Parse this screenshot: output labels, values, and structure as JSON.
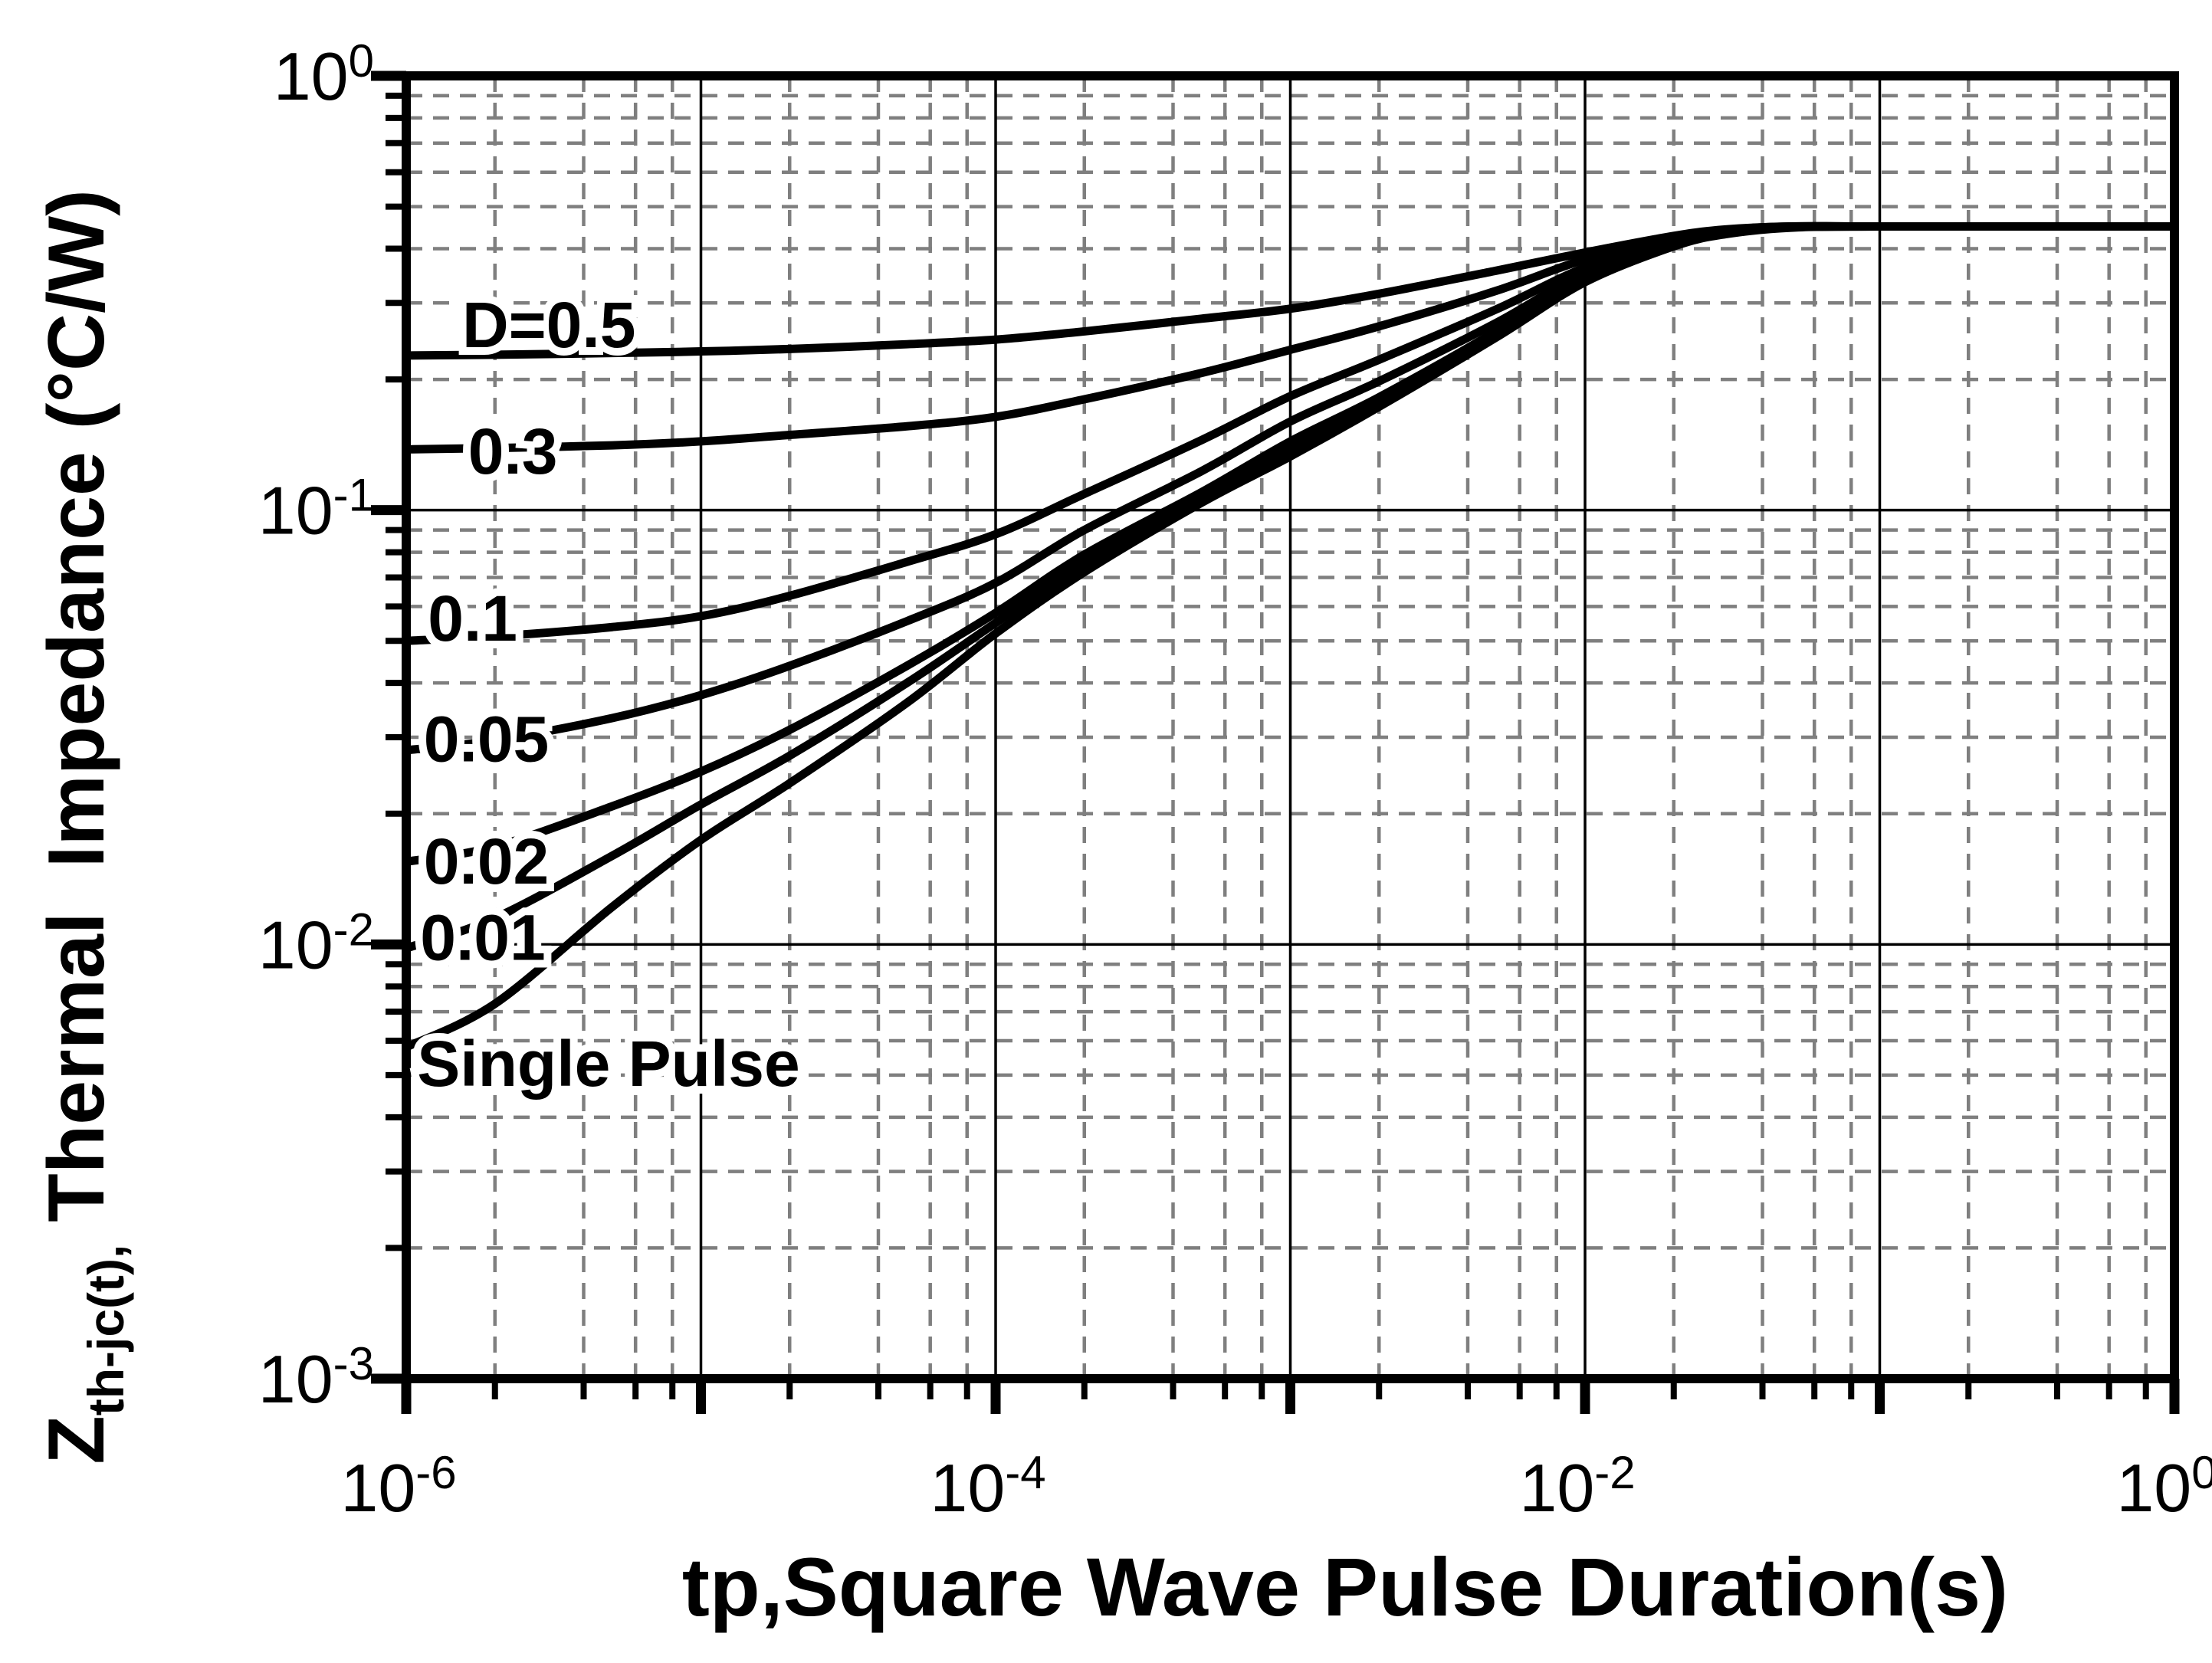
{
  "chart_data": {
    "type": "line",
    "title": "",
    "x_axis": {
      "label": "tp,Square Wave Pulse Duration(s)",
      "scale": "log",
      "range": [
        1e-06,
        1
      ],
      "labeled_exponents": [
        -6,
        -4,
        -2,
        0
      ],
      "major_tick_exponents": [
        -6,
        -5,
        -4,
        -3,
        -2,
        -1,
        0
      ],
      "minor_tick_multiples": [
        2,
        4,
        6,
        8
      ],
      "minor_gridline_multiples": [
        2,
        4,
        6,
        8
      ]
    },
    "y_axis": {
      "symbol": "Z",
      "symbol_subscript": "th-jc(t),",
      "label_rest": " Thermal  Impedance (°C/W)",
      "scale": "log",
      "range": [
        0.001,
        1
      ],
      "labeled_exponents": [
        0,
        -1,
        -2,
        -3
      ],
      "major_tick_exponents": [
        0,
        -1,
        -2,
        -3
      ],
      "minor_tick_multiples": [
        2,
        3,
        4,
        5,
        6,
        7,
        8,
        9
      ],
      "minor_gridline_multiples": [
        2,
        3,
        4,
        5,
        6,
        7,
        8,
        9
      ]
    },
    "grid": {
      "major": "solid",
      "minor": "dashed"
    },
    "legend_position": "inline-curve-labels",
    "steady_state_rth_jc_c_per_w": 0.45,
    "series": [
      {
        "id": "d-0-5",
        "name": "D=0.5",
        "label": "D=0.5",
        "label_at": [
          3.05e-06,
          0.268
        ],
        "points": [
          [
            1e-06,
            0.227
          ],
          [
            2e-06,
            0.228
          ],
          [
            5e-06,
            0.23
          ],
          [
            1e-05,
            0.232
          ],
          [
            2e-05,
            0.235
          ],
          [
            5e-05,
            0.241
          ],
          [
            0.0001,
            0.247
          ],
          [
            0.0002,
            0.258
          ],
          [
            0.0005,
            0.276
          ],
          [
            0.001,
            0.291
          ],
          [
            0.002,
            0.315
          ],
          [
            0.005,
            0.356
          ],
          [
            0.01,
            0.392
          ],
          [
            0.02,
            0.428
          ],
          [
            0.03,
            0.443
          ],
          [
            0.05,
            0.45
          ],
          [
            0.1,
            0.45
          ],
          [
            1,
            0.45
          ]
        ]
      },
      {
        "id": "d-0-3",
        "name": "D=0.3",
        "label": "0.3",
        "label_at": [
          2.3e-06,
          0.137
        ],
        "points": [
          [
            1e-06,
            0.138
          ],
          [
            2e-06,
            0.139
          ],
          [
            5e-06,
            0.141
          ],
          [
            1e-05,
            0.144
          ],
          [
            2e-05,
            0.149
          ],
          [
            5e-05,
            0.156
          ],
          [
            0.0001,
            0.164
          ],
          [
            0.0002,
            0.18
          ],
          [
            0.0005,
            0.207
          ],
          [
            0.001,
            0.234
          ],
          [
            0.002,
            0.265
          ],
          [
            0.005,
            0.32
          ],
          [
            0.01,
            0.378
          ],
          [
            0.02,
            0.424
          ],
          [
            0.03,
            0.442
          ],
          [
            0.05,
            0.45
          ],
          [
            0.1,
            0.45
          ],
          [
            1,
            0.45
          ]
        ]
      },
      {
        "id": "d-0-1",
        "name": "D=0.1",
        "label": "0.1",
        "label_at": [
          1.68e-06,
          0.0565
        ],
        "points": [
          [
            1e-06,
            0.05
          ],
          [
            2e-06,
            0.0512
          ],
          [
            5e-06,
            0.0538
          ],
          [
            1e-05,
            0.057
          ],
          [
            2e-05,
            0.0635
          ],
          [
            5e-05,
            0.076
          ],
          [
            0.0001,
            0.088
          ],
          [
            0.0002,
            0.109
          ],
          [
            0.0005,
            0.145
          ],
          [
            0.001,
            0.183
          ],
          [
            0.002,
            0.222
          ],
          [
            0.005,
            0.29
          ],
          [
            0.01,
            0.362
          ],
          [
            0.02,
            0.418
          ],
          [
            0.03,
            0.44
          ],
          [
            0.05,
            0.449
          ],
          [
            0.1,
            0.45
          ],
          [
            1,
            0.45
          ]
        ]
      },
      {
        "id": "d-0-05",
        "name": "D=0.05",
        "label": "0.05",
        "label_at": [
          1.87e-06,
          0.0298
        ],
        "points": [
          [
            1e-06,
            0.028
          ],
          [
            2e-06,
            0.0295
          ],
          [
            5e-06,
            0.0332
          ],
          [
            1e-05,
            0.0375
          ],
          [
            2e-05,
            0.0438
          ],
          [
            5e-05,
            0.0555
          ],
          [
            0.0001,
            0.068
          ],
          [
            0.0002,
            0.09
          ],
          [
            0.0005,
            0.123
          ],
          [
            0.001,
            0.16
          ],
          [
            0.002,
            0.198
          ],
          [
            0.005,
            0.27
          ],
          [
            0.01,
            0.352
          ],
          [
            0.02,
            0.414
          ],
          [
            0.03,
            0.438
          ],
          [
            0.05,
            0.449
          ],
          [
            0.1,
            0.45
          ],
          [
            1,
            0.45
          ]
        ]
      },
      {
        "id": "d-0-02",
        "name": "D=0.02",
        "label": "0.02",
        "label_at": [
          1.87e-06,
          0.0156
        ],
        "points": [
          [
            1e-06,
            0.0155
          ],
          [
            2e-06,
            0.0168
          ],
          [
            5e-06,
            0.0208
          ],
          [
            1e-05,
            0.025
          ],
          [
            2e-05,
            0.0312
          ],
          [
            5e-05,
            0.0438
          ],
          [
            0.0001,
            0.058
          ],
          [
            0.0002,
            0.079
          ],
          [
            0.0005,
            0.11
          ],
          [
            0.001,
            0.144
          ],
          [
            0.002,
            0.182
          ],
          [
            0.005,
            0.258
          ],
          [
            0.01,
            0.345
          ],
          [
            0.02,
            0.41
          ],
          [
            0.03,
            0.436
          ],
          [
            0.05,
            0.448
          ],
          [
            0.1,
            0.45
          ],
          [
            1,
            0.45
          ]
        ]
      },
      {
        "id": "d-0-01",
        "name": "D=0.01",
        "label": "0.01",
        "label_at": [
          1.82e-06,
          0.0104
        ],
        "points": [
          [
            1e-06,
            0.0098
          ],
          [
            2e-06,
            0.0115
          ],
          [
            5e-06,
            0.016
          ],
          [
            1e-05,
            0.021
          ],
          [
            2e-05,
            0.0272
          ],
          [
            5e-05,
            0.04
          ],
          [
            0.0001,
            0.055
          ],
          [
            0.0002,
            0.0755
          ],
          [
            0.0005,
            0.107
          ],
          [
            0.001,
            0.138
          ],
          [
            0.002,
            0.177
          ],
          [
            0.005,
            0.254
          ],
          [
            0.01,
            0.34
          ],
          [
            0.02,
            0.408
          ],
          [
            0.03,
            0.434
          ],
          [
            0.05,
            0.448
          ],
          [
            0.1,
            0.45
          ],
          [
            1,
            0.45
          ]
        ]
      },
      {
        "id": "single-pulse",
        "name": "Single Pulse",
        "label": "Single Pulse",
        "label_at": [
          4.86e-06,
          0.00533
        ],
        "points": [
          [
            1e-06,
            0.0058
          ],
          [
            2e-06,
            0.0073
          ],
          [
            5e-06,
            0.0122
          ],
          [
            1e-05,
            0.0174
          ],
          [
            2e-05,
            0.0235
          ],
          [
            5e-05,
            0.036
          ],
          [
            0.0001,
            0.052
          ],
          [
            0.0002,
            0.072
          ],
          [
            0.0005,
            0.104
          ],
          [
            0.001,
            0.133
          ],
          [
            0.002,
            0.173
          ],
          [
            0.005,
            0.25
          ],
          [
            0.01,
            0.335
          ],
          [
            0.02,
            0.405
          ],
          [
            0.03,
            0.432
          ],
          [
            0.05,
            0.447
          ],
          [
            0.1,
            0.45
          ],
          [
            1,
            0.45
          ]
        ]
      }
    ],
    "colors": {
      "curve": "#000000",
      "grid_major": "#000000",
      "grid_minor": "#7f7f7f",
      "background": "#ffffff",
      "text": "#000000"
    }
  }
}
